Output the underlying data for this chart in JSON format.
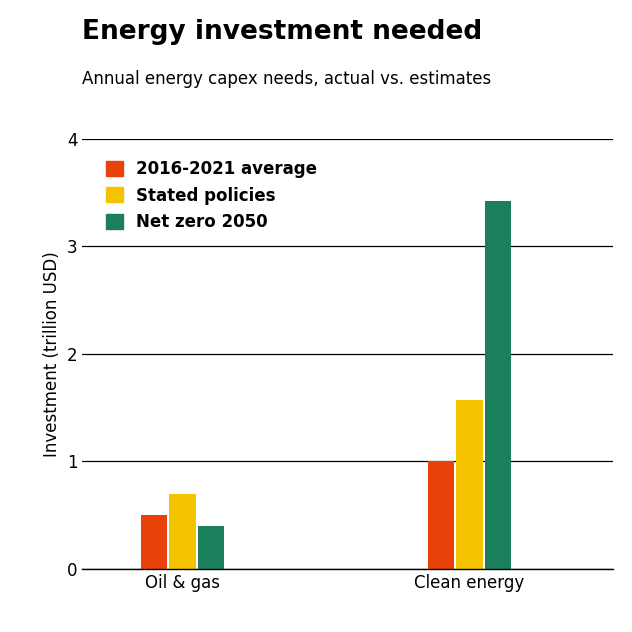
{
  "title": "Energy investment needed",
  "subtitle": "Annual energy capex needs, actual vs. estimates",
  "categories": [
    "Oil & gas",
    "Clean energy"
  ],
  "series": [
    {
      "label": "2016-2021 average",
      "color": "#E8420A",
      "values": [
        0.5,
        1.0
      ]
    },
    {
      "label": "Stated policies",
      "color": "#F5C400",
      "values": [
        0.7,
        1.57
      ]
    },
    {
      "label": "Net zero 2050",
      "color": "#1B7F5E",
      "values": [
        0.4,
        3.42
      ]
    }
  ],
  "ylabel": "Investment (trillion USD)",
  "ylim": [
    0,
    4
  ],
  "yticks": [
    0,
    1,
    2,
    3,
    4
  ],
  "bar_width": 0.2,
  "group_centers": [
    1.0,
    3.0
  ],
  "xlim": [
    0.3,
    4.0
  ],
  "background_color": "#ffffff",
  "title_fontsize": 19,
  "subtitle_fontsize": 12,
  "tick_fontsize": 12,
  "legend_fontsize": 12,
  "ylabel_fontsize": 12
}
